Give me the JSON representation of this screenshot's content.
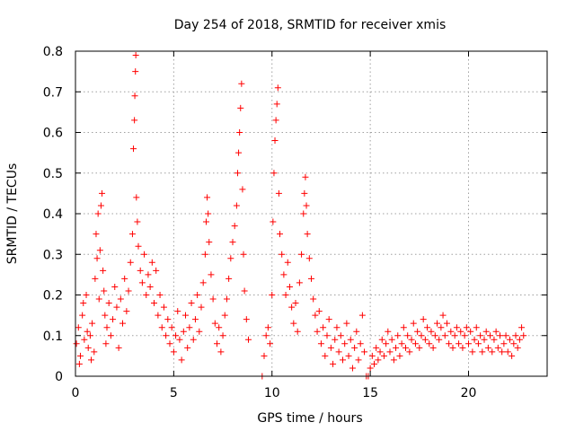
{
  "chart_data": {
    "type": "scatter",
    "title": "Day 254 of 2018, SRMTID for receiver xmis",
    "xlabel": "GPS time / hours",
    "ylabel": "SRMTID / TECUs",
    "xlim": [
      0,
      24
    ],
    "ylim": [
      0,
      0.8
    ],
    "grid": true,
    "x_ticks": [
      0,
      5,
      10,
      15,
      20
    ],
    "x_tick_labels": [
      "0",
      "5",
      "10",
      "15",
      "20"
    ],
    "y_ticks": [
      0,
      0.1,
      0.2,
      0.3,
      0.4,
      0.5,
      0.6,
      0.7,
      0.8
    ],
    "y_tick_labels": [
      "0",
      "0.1",
      "0.2",
      "0.3",
      "0.4",
      "0.5",
      "0.6",
      "0.7",
      "0.8"
    ],
    "series": [
      {
        "name": "SRMTID",
        "color": "#ff0000",
        "marker": "plus",
        "points": [
          [
            0.05,
            0.08
          ],
          [
            0.15,
            0.12
          ],
          [
            0.25,
            0.05
          ],
          [
            0.35,
            0.15
          ],
          [
            0.45,
            0.09
          ],
          [
            0.55,
            0.2
          ],
          [
            0.65,
            0.07
          ],
          [
            0.75,
            0.1
          ],
          [
            0.85,
            0.13
          ],
          [
            0.95,
            0.06
          ],
          [
            0.2,
            0.03
          ],
          [
            0.4,
            0.18
          ],
          [
            0.6,
            0.11
          ],
          [
            0.8,
            0.04
          ],
          [
            1.0,
            0.24
          ],
          [
            1.05,
            0.35
          ],
          [
            1.1,
            0.29
          ],
          [
            1.15,
            0.4
          ],
          [
            1.2,
            0.19
          ],
          [
            1.25,
            0.31
          ],
          [
            1.3,
            0.42
          ],
          [
            1.35,
            0.45
          ],
          [
            1.4,
            0.26
          ],
          [
            1.45,
            0.21
          ],
          [
            1.5,
            0.15
          ],
          [
            1.55,
            0.08
          ],
          [
            1.6,
            0.12
          ],
          [
            1.7,
            0.18
          ],
          [
            1.8,
            0.1
          ],
          [
            1.9,
            0.14
          ],
          [
            2.0,
            0.22
          ],
          [
            2.1,
            0.17
          ],
          [
            2.2,
            0.07
          ],
          [
            2.3,
            0.19
          ],
          [
            2.4,
            0.13
          ],
          [
            2.5,
            0.24
          ],
          [
            2.6,
            0.16
          ],
          [
            2.7,
            0.21
          ],
          [
            2.8,
            0.28
          ],
          [
            2.9,
            0.35
          ],
          [
            2.95,
            0.56
          ],
          [
            3.0,
            0.63
          ],
          [
            3.02,
            0.69
          ],
          [
            3.05,
            0.75
          ],
          [
            3.07,
            0.79
          ],
          [
            3.1,
            0.44
          ],
          [
            3.15,
            0.38
          ],
          [
            3.2,
            0.32
          ],
          [
            3.3,
            0.26
          ],
          [
            3.4,
            0.23
          ],
          [
            3.5,
            0.3
          ],
          [
            3.6,
            0.2
          ],
          [
            3.7,
            0.25
          ],
          [
            3.8,
            0.22
          ],
          [
            3.9,
            0.28
          ],
          [
            4.0,
            0.18
          ],
          [
            4.1,
            0.26
          ],
          [
            4.2,
            0.15
          ],
          [
            4.3,
            0.2
          ],
          [
            4.4,
            0.12
          ],
          [
            4.5,
            0.17
          ],
          [
            4.6,
            0.1
          ],
          [
            4.7,
            0.14
          ],
          [
            4.8,
            0.08
          ],
          [
            4.9,
            0.12
          ],
          [
            5.0,
            0.06
          ],
          [
            5.1,
            0.1
          ],
          [
            5.2,
            0.16
          ],
          [
            5.3,
            0.09
          ],
          [
            5.4,
            0.04
          ],
          [
            5.5,
            0.11
          ],
          [
            5.6,
            0.15
          ],
          [
            5.7,
            0.07
          ],
          [
            5.8,
            0.12
          ],
          [
            5.9,
            0.18
          ],
          [
            6.0,
            0.09
          ],
          [
            6.1,
            0.14
          ],
          [
            6.2,
            0.2
          ],
          [
            6.3,
            0.11
          ],
          [
            6.4,
            0.17
          ],
          [
            6.5,
            0.23
          ],
          [
            6.6,
            0.3
          ],
          [
            6.65,
            0.38
          ],
          [
            6.7,
            0.44
          ],
          [
            6.75,
            0.4
          ],
          [
            6.8,
            0.33
          ],
          [
            6.9,
            0.25
          ],
          [
            7.0,
            0.19
          ],
          [
            7.1,
            0.13
          ],
          [
            7.2,
            0.08
          ],
          [
            7.3,
            0.12
          ],
          [
            7.4,
            0.06
          ],
          [
            7.5,
            0.1
          ],
          [
            7.6,
            0.15
          ],
          [
            7.7,
            0.19
          ],
          [
            7.8,
            0.24
          ],
          [
            7.9,
            0.29
          ],
          [
            8.0,
            0.33
          ],
          [
            8.1,
            0.37
          ],
          [
            8.2,
            0.42
          ],
          [
            8.25,
            0.5
          ],
          [
            8.3,
            0.55
          ],
          [
            8.35,
            0.6
          ],
          [
            8.4,
            0.66
          ],
          [
            8.45,
            0.72
          ],
          [
            8.5,
            0.46
          ],
          [
            8.55,
            0.3
          ],
          [
            8.6,
            0.21
          ],
          [
            8.7,
            0.14
          ],
          [
            8.8,
            0.09
          ],
          [
            9.5,
            0.0
          ],
          [
            9.6,
            0.05
          ],
          [
            9.7,
            0.1
          ],
          [
            9.8,
            0.12
          ],
          [
            9.9,
            0.08
          ],
          [
            10.0,
            0.2
          ],
          [
            10.05,
            0.38
          ],
          [
            10.1,
            0.5
          ],
          [
            10.15,
            0.58
          ],
          [
            10.2,
            0.63
          ],
          [
            10.25,
            0.67
          ],
          [
            10.3,
            0.71
          ],
          [
            10.35,
            0.45
          ],
          [
            10.4,
            0.35
          ],
          [
            10.5,
            0.3
          ],
          [
            10.6,
            0.25
          ],
          [
            10.7,
            0.2
          ],
          [
            10.8,
            0.28
          ],
          [
            10.9,
            0.22
          ],
          [
            11.0,
            0.17
          ],
          [
            11.1,
            0.13
          ],
          [
            11.2,
            0.18
          ],
          [
            11.3,
            0.11
          ],
          [
            11.4,
            0.23
          ],
          [
            11.5,
            0.3
          ],
          [
            11.6,
            0.4
          ],
          [
            11.65,
            0.45
          ],
          [
            11.7,
            0.49
          ],
          [
            11.75,
            0.42
          ],
          [
            11.8,
            0.35
          ],
          [
            11.9,
            0.29
          ],
          [
            12.0,
            0.24
          ],
          [
            12.1,
            0.19
          ],
          [
            12.2,
            0.15
          ],
          [
            12.3,
            0.11
          ],
          [
            12.4,
            0.16
          ],
          [
            12.5,
            0.08
          ],
          [
            12.6,
            0.12
          ],
          [
            12.7,
            0.05
          ],
          [
            12.8,
            0.1
          ],
          [
            12.9,
            0.14
          ],
          [
            13.0,
            0.07
          ],
          [
            13.1,
            0.03
          ],
          [
            13.2,
            0.09
          ],
          [
            13.3,
            0.12
          ],
          [
            13.4,
            0.06
          ],
          [
            13.5,
            0.1
          ],
          [
            13.6,
            0.04
          ],
          [
            13.7,
            0.08
          ],
          [
            13.8,
            0.13
          ],
          [
            13.9,
            0.05
          ],
          [
            14.0,
            0.09
          ],
          [
            14.1,
            0.02
          ],
          [
            14.2,
            0.07
          ],
          [
            14.3,
            0.11
          ],
          [
            14.4,
            0.04
          ],
          [
            14.5,
            0.08
          ],
          [
            14.6,
            0.15
          ],
          [
            14.7,
            0.06
          ],
          [
            14.8,
            0.0
          ],
          [
            14.9,
            0.0
          ],
          [
            15.0,
            0.02
          ],
          [
            15.1,
            0.05
          ],
          [
            15.2,
            0.03
          ],
          [
            15.3,
            0.07
          ],
          [
            15.4,
            0.04
          ],
          [
            15.5,
            0.06
          ],
          [
            15.6,
            0.09
          ],
          [
            15.7,
            0.05
          ],
          [
            15.8,
            0.08
          ],
          [
            15.9,
            0.11
          ],
          [
            16.0,
            0.06
          ],
          [
            16.1,
            0.09
          ],
          [
            16.2,
            0.04
          ],
          [
            16.3,
            0.07
          ],
          [
            16.4,
            0.1
          ],
          [
            16.5,
            0.05
          ],
          [
            16.6,
            0.08
          ],
          [
            16.7,
            0.12
          ],
          [
            16.8,
            0.07
          ],
          [
            16.9,
            0.1
          ],
          [
            17.0,
            0.06
          ],
          [
            17.1,
            0.09
          ],
          [
            17.2,
            0.13
          ],
          [
            17.3,
            0.08
          ],
          [
            17.4,
            0.11
          ],
          [
            17.5,
            0.07
          ],
          [
            17.6,
            0.1
          ],
          [
            17.7,
            0.14
          ],
          [
            17.8,
            0.09
          ],
          [
            17.9,
            0.12
          ],
          [
            18.0,
            0.08
          ],
          [
            18.1,
            0.11
          ],
          [
            18.2,
            0.07
          ],
          [
            18.3,
            0.1
          ],
          [
            18.4,
            0.13
          ],
          [
            18.5,
            0.09
          ],
          [
            18.6,
            0.12
          ],
          [
            18.7,
            0.15
          ],
          [
            18.8,
            0.1
          ],
          [
            18.9,
            0.13
          ],
          [
            19.0,
            0.08
          ],
          [
            19.1,
            0.11
          ],
          [
            19.2,
            0.07
          ],
          [
            19.3,
            0.1
          ],
          [
            19.4,
            0.12
          ],
          [
            19.5,
            0.08
          ],
          [
            19.6,
            0.11
          ],
          [
            19.7,
            0.07
          ],
          [
            19.8,
            0.1
          ],
          [
            19.9,
            0.12
          ],
          [
            20.0,
            0.08
          ],
          [
            20.1,
            0.11
          ],
          [
            20.2,
            0.06
          ],
          [
            20.3,
            0.09
          ],
          [
            20.4,
            0.12
          ],
          [
            20.5,
            0.08
          ],
          [
            20.6,
            0.1
          ],
          [
            20.7,
            0.06
          ],
          [
            20.8,
            0.09
          ],
          [
            20.9,
            0.11
          ],
          [
            21.0,
            0.07
          ],
          [
            21.1,
            0.1
          ],
          [
            21.2,
            0.06
          ],
          [
            21.3,
            0.09
          ],
          [
            21.4,
            0.11
          ],
          [
            21.5,
            0.07
          ],
          [
            21.6,
            0.1
          ],
          [
            21.7,
            0.06
          ],
          [
            21.8,
            0.08
          ],
          [
            21.9,
            0.1
          ],
          [
            22.0,
            0.06
          ],
          [
            22.1,
            0.09
          ],
          [
            22.2,
            0.05
          ],
          [
            22.3,
            0.08
          ],
          [
            22.4,
            0.1
          ],
          [
            22.5,
            0.07
          ],
          [
            22.6,
            0.09
          ],
          [
            22.7,
            0.12
          ],
          [
            22.8,
            0.1
          ]
        ]
      }
    ]
  }
}
